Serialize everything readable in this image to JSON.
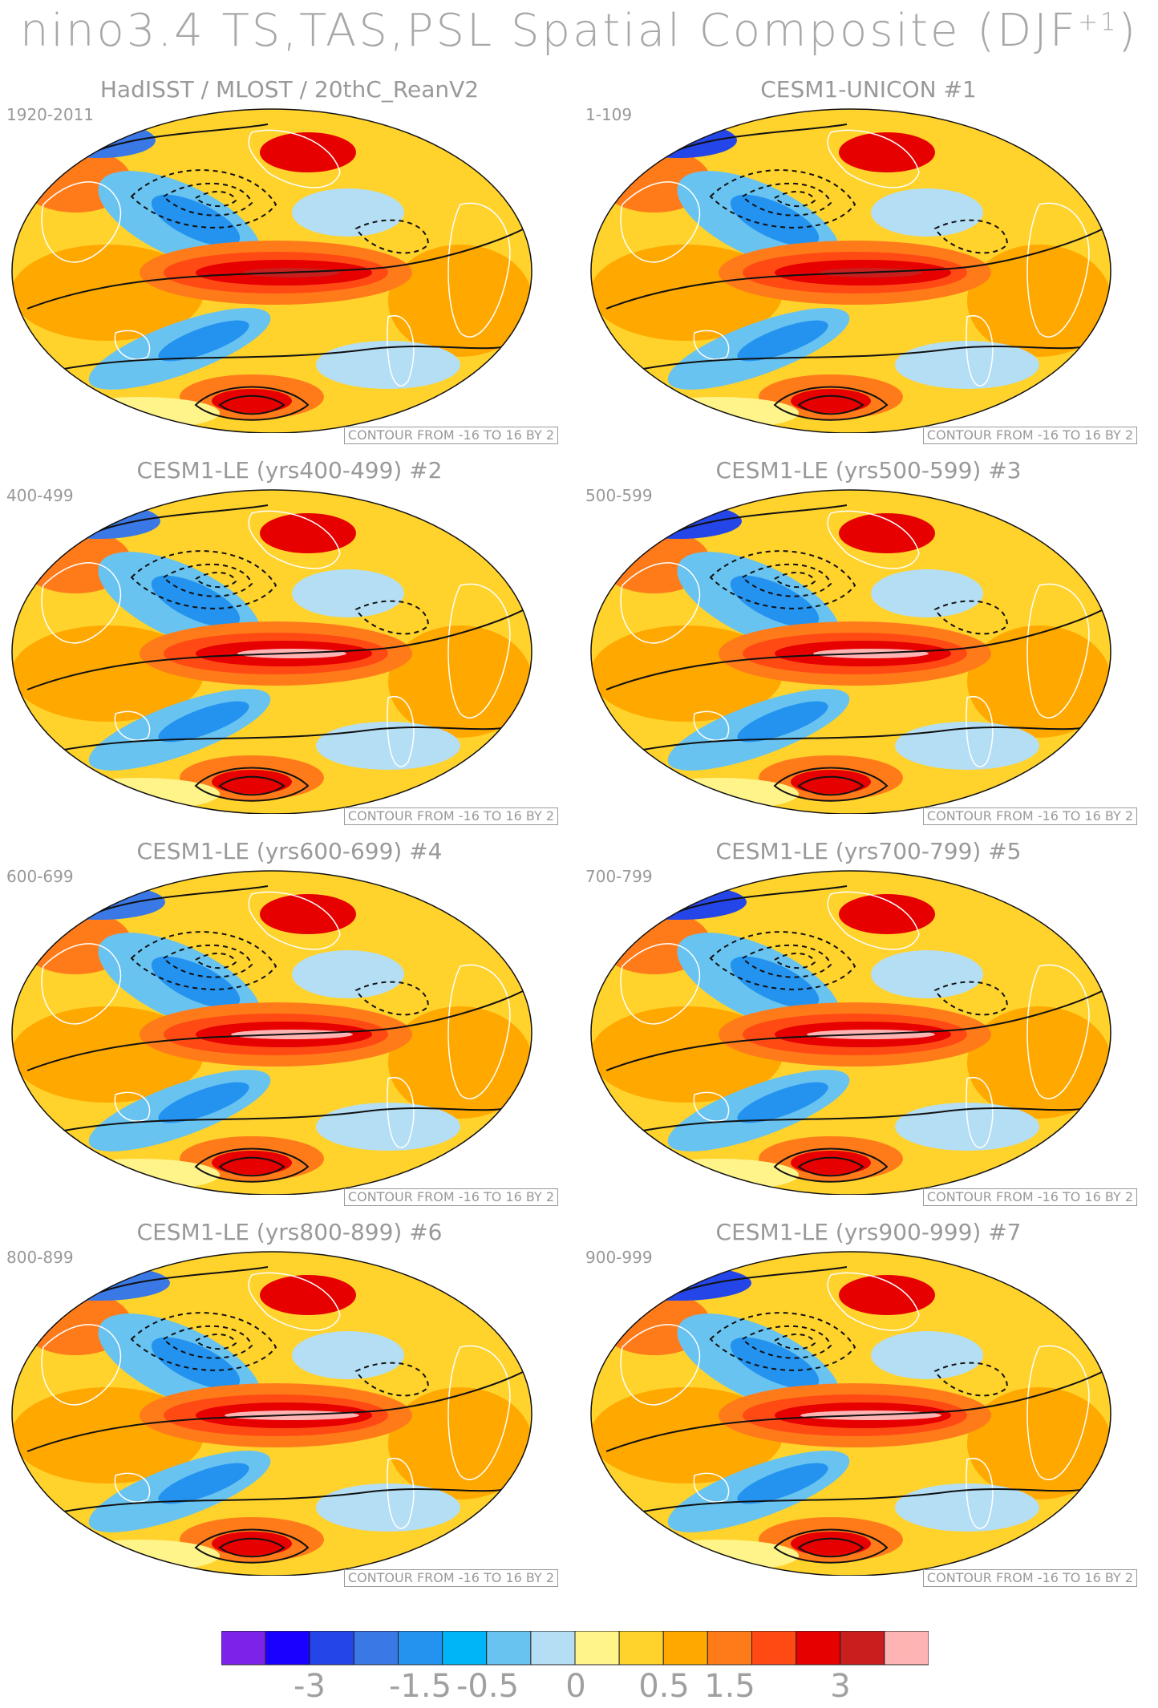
{
  "title": {
    "main": "nino3.4 TS,TAS,PSL Spatial Composite (DJF",
    "superscript": "+1",
    "close": ")"
  },
  "panels": [
    {
      "title": "HadISST / MLOST / 20thC_ReanV2",
      "period": "1920-2011",
      "contour_note": "CONTOUR FROM -16 TO 16 BY 2"
    },
    {
      "title": "CESM1-UNICON        #1",
      "period": "1-109",
      "contour_note": "CONTOUR FROM -16 TO 16 BY 2"
    },
    {
      "title": "CESM1-LE (yrs400-499) #2",
      "period": "400-499",
      "contour_note": "CONTOUR FROM -16 TO 16 BY 2"
    },
    {
      "title": "CESM1-LE (yrs500-599) #3",
      "period": "500-599",
      "contour_note": "CONTOUR FROM -16 TO 16 BY 2"
    },
    {
      "title": "CESM1-LE (yrs600-699) #4",
      "period": "600-699",
      "contour_note": "CONTOUR FROM -16 TO 16 BY 2"
    },
    {
      "title": "CESM1-LE (yrs700-799) #5",
      "period": "700-799",
      "contour_note": "CONTOUR FROM -16 TO 16 BY 2"
    },
    {
      "title": "CESM1-LE (yrs800-899) #6",
      "period": "800-899",
      "contour_note": "CONTOUR FROM -16 TO 16 BY 2"
    },
    {
      "title": "CESM1-LE (yrs900-999) #7",
      "period": "900-999",
      "contour_note": "CONTOUR FROM -16 TO 16 BY 2"
    }
  ],
  "colorbar": {
    "colors": [
      "#7d22e8",
      "#1a00ff",
      "#2446e8",
      "#3a78e6",
      "#2493f0",
      "#00b4f8",
      "#68c3f0",
      "#b4def4",
      "#fff48a",
      "#ffd22c",
      "#ffa800",
      "#ff7b1a",
      "#ff4a14",
      "#e60000",
      "#c81e1e",
      "#ffb4b4"
    ],
    "labels": [
      "-3",
      "-1.5",
      "-0.5",
      "0",
      "0.5",
      "1.5",
      "3"
    ]
  }
}
